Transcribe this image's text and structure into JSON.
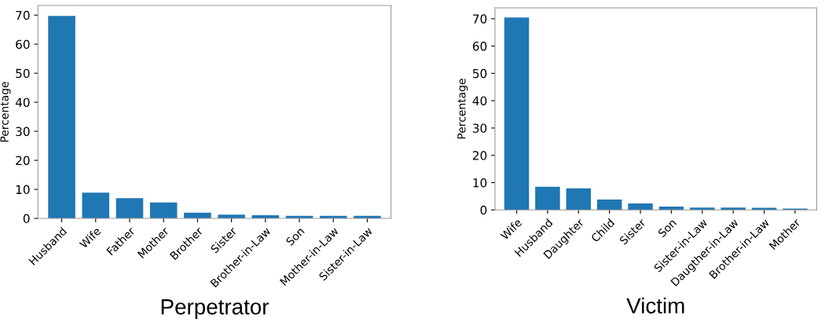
{
  "chart_data": [
    {
      "type": "bar",
      "xlabel": "Perpetrator",
      "ylabel": "Percentage",
      "categories": [
        "Husband",
        "Wife",
        "Father",
        "Mother",
        "Brother",
        "Sister",
        "Brother-in-Law",
        "Son",
        "Mother-in-Law",
        "Sister-in-Law"
      ],
      "values": [
        69.7,
        8.9,
        7.0,
        5.5,
        2.0,
        1.3,
        1.1,
        0.9,
        0.9,
        0.9
      ],
      "color": "#1f77b4",
      "ylim": [
        0,
        73.3
      ],
      "yticks": [
        0,
        10,
        20,
        30,
        40,
        50,
        60,
        70
      ],
      "grid": false,
      "legend": false
    },
    {
      "type": "bar",
      "xlabel": "Victim",
      "ylabel": "Percentage",
      "categories": [
        "Wife",
        "Husband",
        "Daughter",
        "Child",
        "Sister",
        "Son",
        "Sister-in-Law",
        "Daugther-in-Law",
        "Brother-in-Law",
        "Mother"
      ],
      "values": [
        70.5,
        8.5,
        7.9,
        3.8,
        2.4,
        1.2,
        0.9,
        0.9,
        0.8,
        0.5
      ],
      "color": "#1f77b4",
      "ylim": [
        0,
        74
      ],
      "yticks": [
        0,
        10,
        20,
        30,
        40,
        50,
        60,
        70
      ],
      "grid": false,
      "legend": false
    }
  ]
}
